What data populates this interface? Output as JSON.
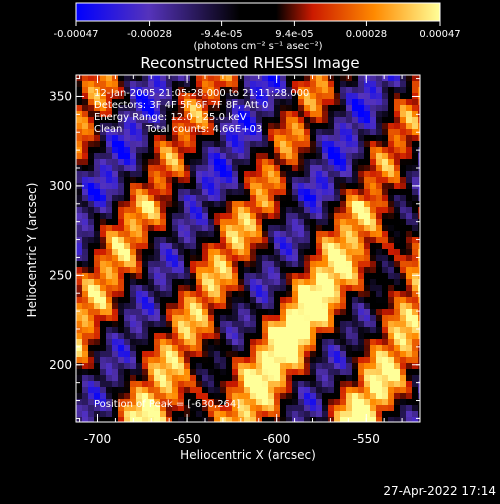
{
  "chart_data": {
    "type": "heatmap",
    "title": "Reconstructed RHESSI Image",
    "xlabel": "Heliocentric X (arcsec)",
    "ylabel": "Heliocentric Y (arcsec)",
    "xlim": [
      -712,
      -520
    ],
    "ylim": [
      168,
      362
    ],
    "x_ticks": [
      -700,
      -650,
      -600,
      -550
    ],
    "y_ticks": [
      200,
      250,
      300,
      350
    ],
    "x_tick_labels": [
      "-700",
      "-650",
      "-600",
      "-550"
    ],
    "y_tick_labels": [
      "200",
      "250",
      "300",
      "350"
    ],
    "colorbar": {
      "min": -0.00047,
      "max": 0.00047,
      "ticks": [
        -0.00047,
        -0.00028,
        -9.4e-05,
        9.4e-05,
        0.00028,
        0.00047
      ],
      "tick_labels": [
        "-0.00047",
        "-0.00028",
        "-9.4e-05",
        "9.4e-05",
        "0.00028",
        "0.00047"
      ],
      "units_label": "(photons cm⁻² s⁻¹ asec⁻²)",
      "colors": [
        "#0000ff",
        "#6633aa",
        "#000000",
        "#cc2200",
        "#ff8800",
        "#ffffaa"
      ]
    },
    "annotations": {
      "time_range": "12-Jan-2005 21:05:28.000 to 21:11:28.000",
      "detectors": "Detectors: 3F 4F 5F 6F 7F 8F, Att 0",
      "energy_range": "Energy Range: 12.0 - 25.0 keV",
      "clean_label": "Clean",
      "total_counts": "Total counts: 4.66E+03",
      "peak_position": "Position of Peak = [-630,264]"
    }
  },
  "timestamp": "27-Apr-2022 17:14"
}
